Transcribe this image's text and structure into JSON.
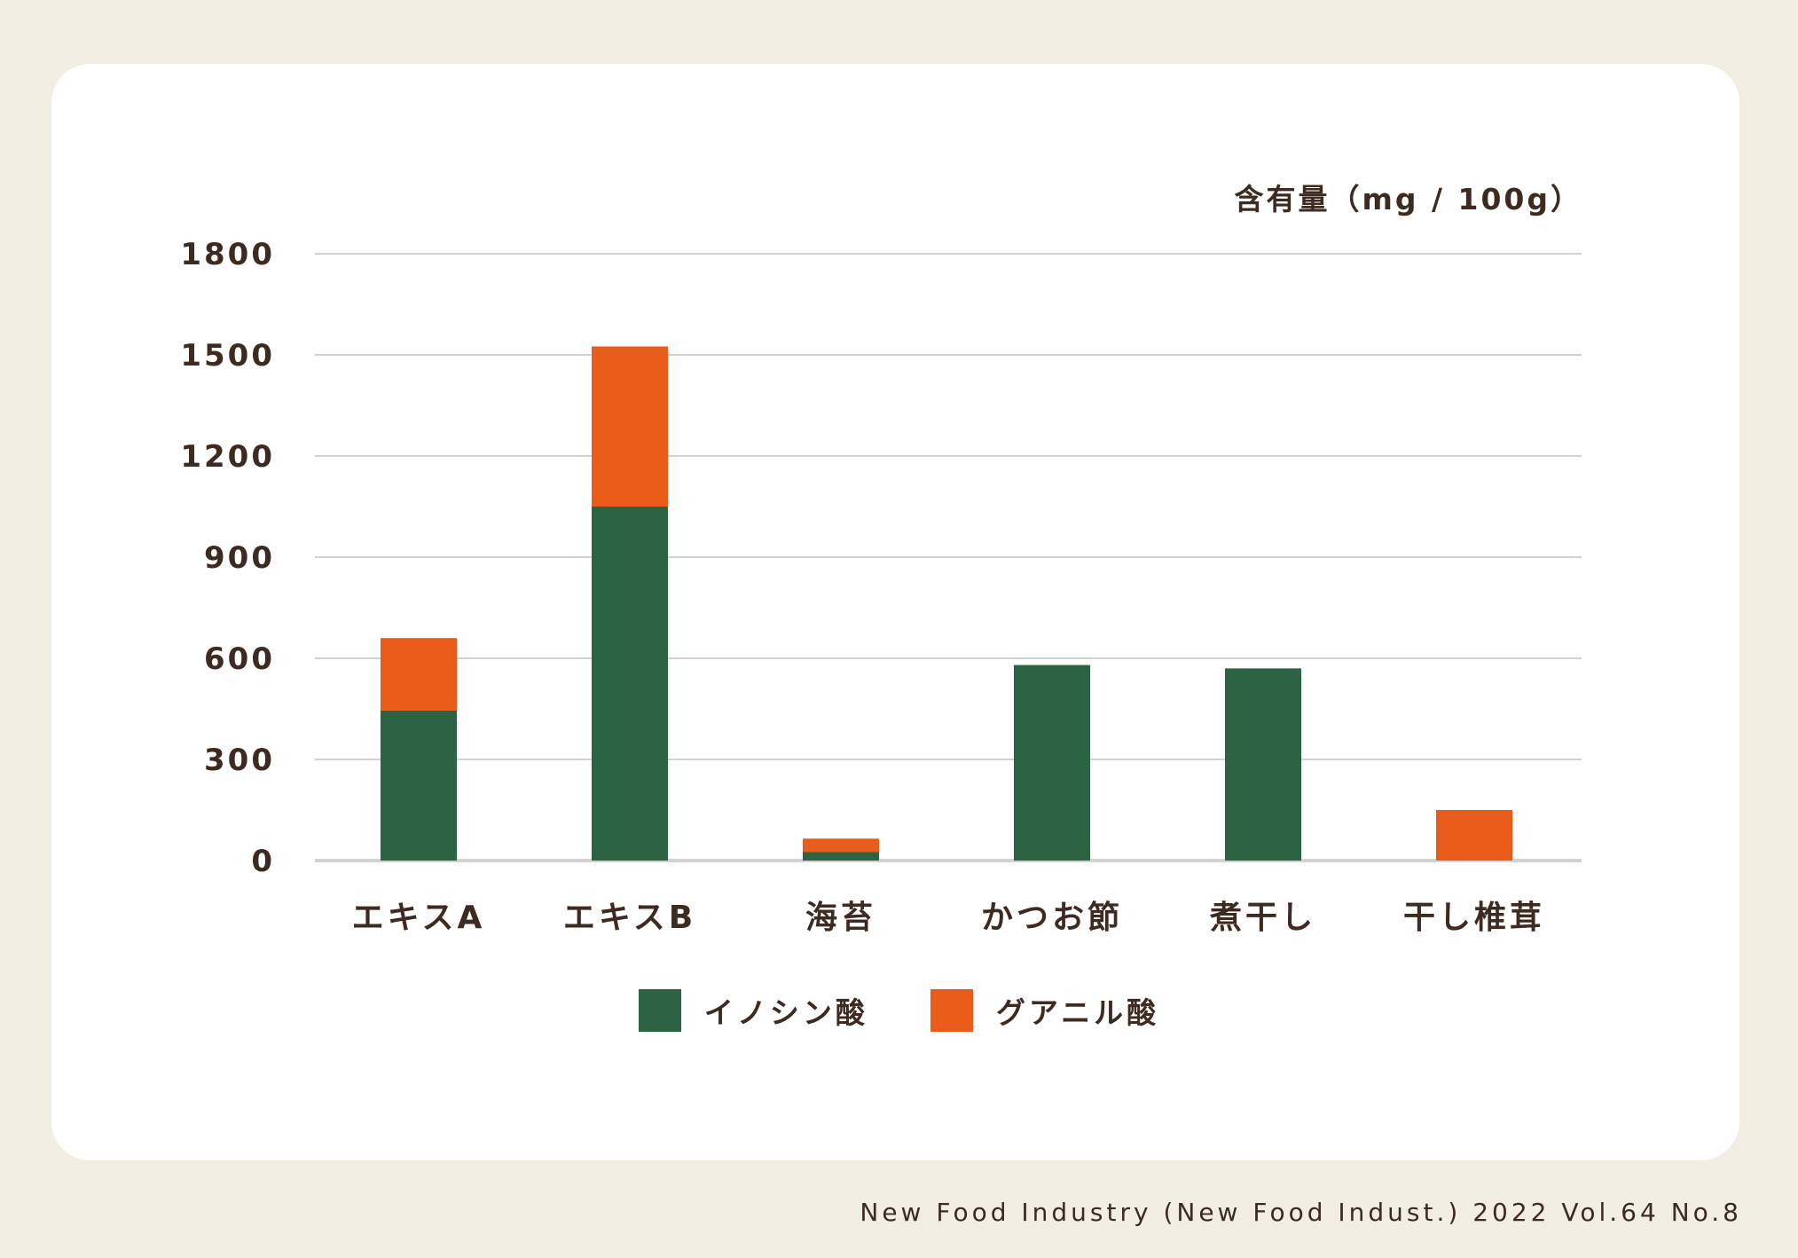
{
  "chart_data": {
    "type": "bar",
    "stacked": true,
    "categories": [
      "エキスA",
      "エキスB",
      "海苔",
      "かつお節",
      "煮干し",
      "干し椎茸"
    ],
    "series": [
      {
        "name": "イノシン酸",
        "values": [
          445,
          1050,
          25,
          580,
          570,
          0
        ]
      },
      {
        "name": "グアニル酸",
        "values": [
          215,
          475,
          40,
          0,
          0,
          150
        ]
      }
    ],
    "ylabel": "含有量（mg / 100g）",
    "ylim": [
      0,
      1800
    ],
    "yticks": [
      0,
      300,
      600,
      900,
      1200,
      1500,
      1800
    ],
    "grid": true,
    "legend": "bottom"
  },
  "colors": {
    "イノシン酸": "#2b6343",
    "グアニル酸": "#e95c1a",
    "grid": "#d3d3d3",
    "text": "#3d2b22",
    "background": "#f2eee3",
    "card": "#ffffff"
  },
  "citation": "New Food Industry (New Food Indust.) 2022 Vol.64 No.8"
}
